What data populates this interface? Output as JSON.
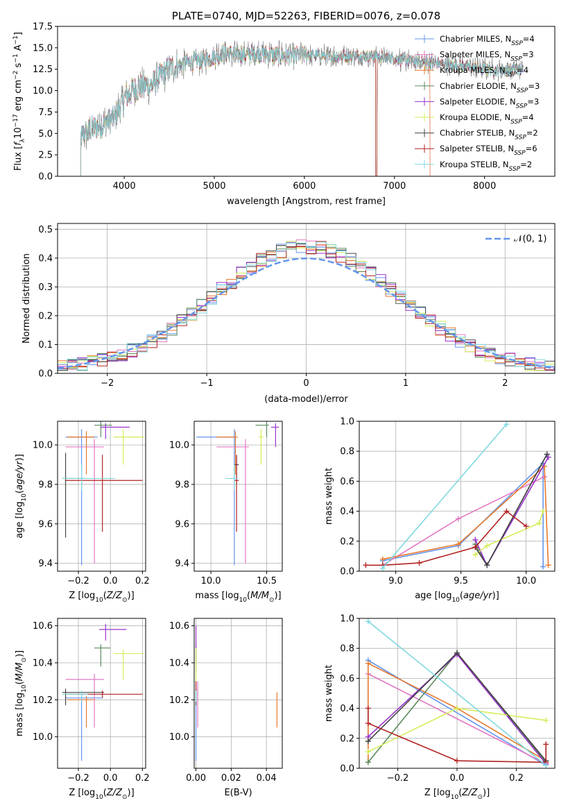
{
  "chart_data": [
    {
      "type": "line",
      "title": "PLATE=0740, MJD=52263, FIBERID=0076, z=0.078",
      "xlabel": "wavelength [Angstrom, rest frame]",
      "ylabel": "Flux [f_λ 10^-17 erg cm^-2 s^-1 A^-1]",
      "xlim": [
        3260,
        8780
      ],
      "ylim": [
        0,
        17.5
      ],
      "xticks": [
        "4000",
        "5000",
        "6000",
        "7000",
        "8000"
      ],
      "yticks": [
        "0.0",
        "2.5",
        "5.0",
        "7.5",
        "10.0",
        "12.5",
        "15.0",
        "17.5"
      ],
      "legend_position": "top-right",
      "continuum": {
        "x": [
          3500,
          3600,
          3700,
          3800,
          3900,
          4000,
          4100,
          4200,
          4300,
          4400,
          4500,
          4700,
          4900,
          5100,
          5300,
          5500,
          5800,
          6000,
          6300,
          6600,
          6900,
          7200,
          7500,
          7800,
          8100,
          8400
        ],
        "y": [
          4.5,
          5.3,
          5.8,
          6.2,
          7.0,
          9.2,
          10.0,
          10.6,
          10.6,
          11.6,
          12.5,
          13.3,
          13.6,
          14.4,
          14.2,
          14.4,
          14.0,
          14.2,
          14.0,
          14.1,
          13.9,
          13.4,
          13.2,
          12.8,
          12.4,
          12.4
        ]
      },
      "series": [
        {
          "name": "Chabrier MILES, N_SSP=4",
          "color": "#6495ed"
        },
        {
          "name": "Salpeter MILES, N_SSP=3",
          "color": "#e377c2"
        },
        {
          "name": "Kroupa MILES, N_SSP=4",
          "color": "#e8792c"
        },
        {
          "name": "Chabrier ELODIE, N_SSP=3",
          "color": "#5b8a5b"
        },
        {
          "name": "Salpeter ELODIE, N_SSP=3",
          "color": "#9932cc"
        },
        {
          "name": "Kroupa ELODIE, N_SSP=4",
          "color": "#d4ed5a"
        },
        {
          "name": "Chabrier STELIB, N_SSP=2",
          "color": "#444444"
        },
        {
          "name": "Salpeter STELIB, N_SSP=6",
          "color": "#b22222"
        },
        {
          "name": "Kroupa STELIB, N_SSP=2",
          "color": "#7fd8e0"
        }
      ]
    },
    {
      "type": "histogram",
      "xlabel": "(data-model)/error",
      "ylabel": "Normed distribution",
      "xlim": [
        -2.5,
        2.5
      ],
      "ylim": [
        0,
        0.52
      ],
      "xticks": [
        "−2",
        "−1",
        "0",
        "1",
        "2"
      ],
      "yticks": [
        "0.0",
        "0.1",
        "0.2",
        "0.3",
        "0.4",
        "0.5"
      ],
      "bin_width": 0.1,
      "legend_position": "top-right",
      "reference": {
        "name": "𝒩(0, 1)",
        "color": "#6495ed"
      },
      "series": [
        {
          "color": "#6495ed",
          "jitter": 0
        },
        {
          "color": "#e377c2",
          "jitter": 1
        },
        {
          "color": "#e8792c",
          "jitter": 2
        },
        {
          "color": "#5b8a5b",
          "jitter": 3
        },
        {
          "color": "#9932cc",
          "jitter": 4
        },
        {
          "color": "#d4ed5a",
          "jitter": 5
        },
        {
          "color": "#444444",
          "jitter": 6
        },
        {
          "color": "#b22222",
          "jitter": 7
        },
        {
          "color": "#7fd8e0",
          "jitter": 8
        }
      ]
    },
    {
      "type": "errorbar",
      "xlabel": "Z [log10(Z/Z⊙)]",
      "ylabel": "age  [log10(age/yr)]",
      "xlim": [
        -0.33,
        0.22
      ],
      "ylim": [
        9.36,
        10.12
      ],
      "xticks": [
        "−0.2",
        "0.0",
        "0.2"
      ],
      "yticks": [
        "9.4",
        "9.6",
        "9.8",
        "10.0"
      ],
      "points": [
        {
          "color": "#6495ed",
          "x": -0.18,
          "y": 10.04,
          "xerr": [
            0.1,
            0.1
          ],
          "yerr": [
            0.65,
            0.04
          ]
        },
        {
          "color": "#e377c2",
          "x": -0.1,
          "y": 9.99,
          "xerr": [
            0.18,
            0.06
          ],
          "yerr": [
            0.59,
            0.04
          ]
        },
        {
          "color": "#e8792c",
          "x": -0.15,
          "y": 10.04,
          "xerr": [
            0.12,
            0.05
          ],
          "yerr": [
            0.19,
            0.03
          ]
        },
        {
          "color": "#5b8a5b",
          "x": -0.06,
          "y": 10.1,
          "xerr": [
            0.04,
            0.07
          ],
          "yerr": [
            0.06,
            0.02
          ]
        },
        {
          "color": "#9932cc",
          "x": -0.03,
          "y": 10.09,
          "xerr": [
            0.03,
            0.15
          ],
          "yerr": [
            0.06,
            0.02
          ]
        },
        {
          "color": "#d4ed5a",
          "x": 0.08,
          "y": 10.04,
          "xerr": [
            0.06,
            0.13
          ],
          "yerr": [
            0.14,
            0.04
          ]
        },
        {
          "color": "#444444",
          "x": -0.28,
          "y": 9.83,
          "xerr": [
            0.02,
            0.12
          ],
          "yerr": [
            0.3,
            0.13
          ]
        },
        {
          "color": "#b22222",
          "x": -0.05,
          "y": 9.82,
          "xerr": [
            0.23,
            0.25
          ],
          "yerr": [
            0.26,
            0.13
          ]
        },
        {
          "color": "#7fd8e0",
          "x": -0.18,
          "y": 9.83,
          "xerr": [
            0.12,
            0.21
          ],
          "yerr": [
            0.06,
            0.07
          ]
        }
      ]
    },
    {
      "type": "errorbar",
      "xlabel": "mass [log10(M/M⊙)]",
      "ylabel": "",
      "xlim": [
        9.85,
        10.64
      ],
      "ylim": [
        9.36,
        10.12
      ],
      "xticks": [
        "10.0",
        "10.5"
      ],
      "yticks": [
        "9.4",
        "9.6",
        "9.8",
        "10.0"
      ],
      "points": [
        {
          "color": "#6495ed",
          "x": 10.21,
          "y": 10.04,
          "xerr": [
            0.34,
            0.02
          ],
          "yerr": [
            0.65,
            0.04
          ]
        },
        {
          "color": "#e377c2",
          "x": 10.31,
          "y": 9.99,
          "xerr": [
            0.26,
            0.03
          ],
          "yerr": [
            0.59,
            0.04
          ]
        },
        {
          "color": "#e8792c",
          "x": 10.22,
          "y": 10.04,
          "xerr": [
            0.17,
            0.02
          ],
          "yerr": [
            0.19,
            0.03
          ]
        },
        {
          "color": "#5b8a5b",
          "x": 10.5,
          "y": 10.1,
          "xerr": [
            0.1,
            0.02
          ],
          "yerr": [
            0.06,
            0.02
          ]
        },
        {
          "color": "#9932cc",
          "x": 10.58,
          "y": 10.09,
          "xerr": [
            0.04,
            0.03
          ],
          "yerr": [
            0.1,
            0.02
          ]
        },
        {
          "color": "#d4ed5a",
          "x": 10.45,
          "y": 10.04,
          "xerr": [
            0.02,
            0.02
          ],
          "yerr": [
            0.14,
            0.04
          ]
        },
        {
          "color": "#444444",
          "x": 10.23,
          "y": 9.9,
          "xerr": [
            0.02,
            0.02
          ],
          "yerr": [
            0.1,
            0.04
          ]
        },
        {
          "color": "#b22222",
          "x": 10.23,
          "y": 9.82,
          "xerr": [
            0.02,
            0.02
          ],
          "yerr": [
            0.26,
            0.13
          ]
        },
        {
          "color": "#7fd8e0",
          "x": 10.21,
          "y": 9.83,
          "xerr": [
            0.08,
            0.03
          ],
          "yerr": [
            0.06,
            0.07
          ]
        }
      ]
    },
    {
      "type": "line",
      "xlabel": "age  [log10(age/yr)]",
      "ylabel": "mass weight",
      "xlim": [
        8.72,
        10.22
      ],
      "ylim": [
        0,
        1
      ],
      "xticks": [
        "9.0",
        "9.5",
        "10.0"
      ],
      "yticks": [
        "0.0",
        "0.2",
        "0.4",
        "0.6",
        "0.8",
        "1.0"
      ],
      "series": [
        {
          "color": "#6495ed",
          "points": [
            [
              8.9,
              0.07
            ],
            [
              9.48,
              0.17
            ],
            [
              10.13,
              0.72
            ],
            [
              10.13,
              0.03
            ]
          ]
        },
        {
          "color": "#e377c2",
          "points": [
            [
              8.9,
              0.04
            ],
            [
              9.48,
              0.35
            ],
            [
              10.14,
              0.63
            ]
          ]
        },
        {
          "color": "#e8792c",
          "points": [
            [
              8.9,
              0.08
            ],
            [
              9.48,
              0.18
            ],
            [
              10.14,
              0.7
            ],
            [
              10.17,
              0.04
            ]
          ]
        },
        {
          "color": "#5b8a5b",
          "points": [
            [
              9.61,
              0.18
            ],
            [
              9.7,
              0.04
            ],
            [
              10.16,
              0.78
            ]
          ]
        },
        {
          "color": "#9932cc",
          "points": [
            [
              9.61,
              0.21
            ],
            [
              9.7,
              0.04
            ],
            [
              10.17,
              0.76
            ]
          ]
        },
        {
          "color": "#d4ed5a",
          "points": [
            [
              9.61,
              0.11
            ],
            [
              9.7,
              0.17
            ],
            [
              10.1,
              0.32
            ],
            [
              10.13,
              0.4
            ]
          ]
        },
        {
          "color": "#444444",
          "points": [
            [
              9.61,
              0.16
            ],
            [
              9.7,
              0.04
            ],
            [
              10.16,
              0.78
            ]
          ]
        },
        {
          "color": "#b22222",
          "points": [
            [
              8.77,
              0.04
            ],
            [
              8.9,
              0.04
            ],
            [
              9.18,
              0.055
            ],
            [
              9.61,
              0.16
            ],
            [
              9.85,
              0.4
            ],
            [
              10.0,
              0.3
            ]
          ]
        },
        {
          "color": "#7fd8e0",
          "points": [
            [
              8.9,
              0.02
            ],
            [
              9.85,
              0.98
            ]
          ]
        }
      ]
    },
    {
      "type": "errorbar",
      "xlabel": "Z [log10(Z/Z⊙)]",
      "ylabel": "mass [log10(M/M⊙)]",
      "xlim": [
        -0.33,
        0.22
      ],
      "ylim": [
        9.83,
        10.64
      ],
      "xticks": [
        "−0.2",
        "0.0",
        "0.2"
      ],
      "yticks": [
        "10.0",
        "10.2",
        "10.4",
        "10.6"
      ],
      "points": [
        {
          "color": "#6495ed",
          "x": -0.18,
          "y": 10.21,
          "xerr": [
            0.1,
            0.13
          ],
          "yerr": [
            0.34,
            0.02
          ]
        },
        {
          "color": "#e377c2",
          "x": -0.1,
          "y": 10.31,
          "xerr": [
            0.18,
            0.06
          ],
          "yerr": [
            0.26,
            0.03
          ]
        },
        {
          "color": "#e8792c",
          "x": -0.15,
          "y": 10.2,
          "xerr": [
            0.12,
            0.05
          ],
          "yerr": [
            0.15,
            0.02
          ]
        },
        {
          "color": "#5b8a5b",
          "x": -0.06,
          "y": 10.48,
          "xerr": [
            0.04,
            0.06
          ],
          "yerr": [
            0.1,
            0.02
          ]
        },
        {
          "color": "#9932cc",
          "x": -0.03,
          "y": 10.58,
          "xerr": [
            0.04,
            0.13
          ],
          "yerr": [
            0.06,
            0.03
          ]
        },
        {
          "color": "#d4ed5a",
          "x": 0.08,
          "y": 10.45,
          "xerr": [
            0.06,
            0.13
          ],
          "yerr": [
            0.14,
            0.02
          ]
        },
        {
          "color": "#444444",
          "x": -0.28,
          "y": 10.24,
          "xerr": [
            0.02,
            0.24
          ],
          "yerr": [
            0.07,
            0.02
          ]
        },
        {
          "color": "#b22222",
          "x": -0.05,
          "y": 10.23,
          "xerr": [
            0.23,
            0.25
          ],
          "yerr": [
            0.02,
            0.02
          ]
        },
        {
          "color": "#7fd8e0",
          "x": -0.18,
          "y": 10.23,
          "xerr": [
            0.12,
            0.04
          ],
          "yerr": [
            0.04,
            0.02
          ]
        }
      ]
    },
    {
      "type": "errorbar",
      "xlabel": "E(B-V)",
      "ylabel": "",
      "xlim": [
        -0.001,
        0.049
      ],
      "ylim": [
        9.83,
        10.64
      ],
      "xticks": [
        "0.00",
        "0.02",
        "0.04"
      ],
      "yticks": [
        "10.0",
        "10.2",
        "10.4",
        "10.6"
      ],
      "points": [
        {
          "color": "#6495ed",
          "x": 0.0,
          "y": 10.21,
          "xerr": [
            0,
            0
          ],
          "yerr": [
            0.34,
            0.02
          ]
        },
        {
          "color": "#e377c2",
          "x": 0.001,
          "y": 10.2,
          "xerr": [
            0,
            0
          ],
          "yerr": [
            0.15,
            0.1
          ]
        },
        {
          "color": "#e8792c",
          "x": 0.046,
          "y": 10.15,
          "xerr": [
            0,
            0
          ],
          "yerr": [
            0.1,
            0.09
          ]
        },
        {
          "color": "#5b8a5b",
          "x": 0.0,
          "y": 10.45,
          "xerr": [
            0,
            0
          ],
          "yerr": [
            0.1,
            0.05
          ]
        },
        {
          "color": "#9932cc",
          "x": 0.0,
          "y": 10.52,
          "xerr": [
            0,
            0
          ],
          "yerr": [
            0.12,
            0.08
          ]
        },
        {
          "color": "#d4ed5a",
          "x": 0.0,
          "y": 10.4,
          "xerr": [
            0,
            0
          ],
          "yerr": [
            0.1,
            0.08
          ]
        },
        {
          "color": "#444444",
          "x": 0.0,
          "y": 10.24,
          "xerr": [
            0,
            0
          ],
          "yerr": [
            0.07,
            0.02
          ]
        },
        {
          "color": "#b22222",
          "x": 0.0,
          "y": 10.25,
          "xerr": [
            0,
            0
          ],
          "yerr": [
            0.05,
            0.05
          ]
        },
        {
          "color": "#7fd8e0",
          "x": 0.0,
          "y": 10.23,
          "xerr": [
            0,
            0
          ],
          "yerr": [
            0.04,
            0.02
          ]
        }
      ]
    },
    {
      "type": "line",
      "xlabel": "Z [log10(Z/Z⊙)]",
      "ylabel": "mass weight",
      "xlim": [
        -0.33,
        0.33
      ],
      "ylim": [
        0,
        1
      ],
      "xticks": [
        "−0.2",
        "0.0",
        "0.2"
      ],
      "yticks": [
        "0.0",
        "0.2",
        "0.4",
        "0.6",
        "0.8",
        "1.0"
      ],
      "series": [
        {
          "color": "#6495ed",
          "points": [
            [
              -0.3,
              0.72
            ],
            [
              0.3,
              0.02
            ]
          ]
        },
        {
          "color": "#e377c2",
          "points": [
            [
              -0.3,
              0.63
            ],
            [
              0.3,
              0.03
            ]
          ]
        },
        {
          "color": "#e8792c",
          "points": [
            [
              -0.3,
              0.04
            ],
            [
              -0.3,
              0.7
            ],
            [
              0.0,
              0.4
            ],
            [
              0.3,
              0.05
            ]
          ]
        },
        {
          "color": "#5b8a5b",
          "points": [
            [
              -0.3,
              0.04
            ],
            [
              0.0,
              0.77
            ],
            [
              0.3,
              0.04
            ]
          ]
        },
        {
          "color": "#9932cc",
          "points": [
            [
              -0.3,
              0.21
            ],
            [
              0.0,
              0.76
            ],
            [
              0.3,
              0.03
            ]
          ]
        },
        {
          "color": "#d4ed5a",
          "points": [
            [
              -0.3,
              0.11
            ],
            [
              0.0,
              0.4
            ],
            [
              0.3,
              0.32
            ]
          ]
        },
        {
          "color": "#444444",
          "points": [
            [
              -0.3,
              0.18
            ],
            [
              0.0,
              0.77
            ],
            [
              0.3,
              0.05
            ]
          ]
        },
        {
          "color": "#b22222",
          "points": [
            [
              -0.3,
              0.4
            ],
            [
              -0.3,
              0.3
            ],
            [
              0.0,
              0.05
            ],
            [
              0.3,
              0.04
            ],
            [
              0.3,
              0.16
            ]
          ]
        },
        {
          "color": "#7fd8e0",
          "points": [
            [
              -0.3,
              0.98
            ],
            [
              0.3,
              0.02
            ]
          ]
        }
      ]
    }
  ]
}
